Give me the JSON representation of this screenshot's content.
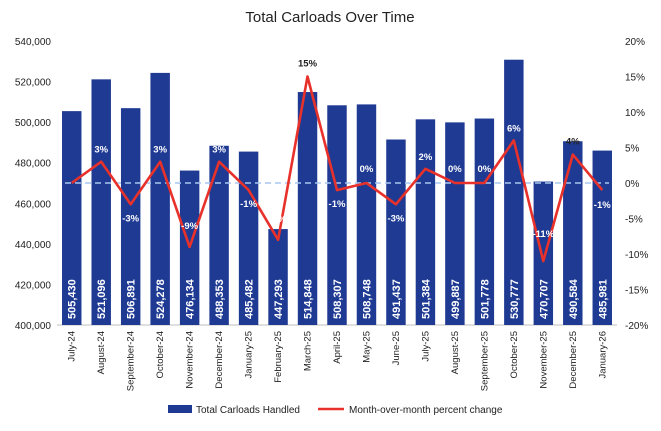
{
  "chart_data": {
    "type": "bar",
    "title": "Total Carloads Over Time",
    "categories": [
      "July-24",
      "August-24",
      "September-24",
      "October-24",
      "November-24",
      "December-24",
      "January-25",
      "February-25",
      "March-25",
      "April-25",
      "May-25",
      "June-25",
      "July-25",
      "August-25",
      "September-25",
      "October-25",
      "November-25",
      "December-25",
      "January-26"
    ],
    "series": [
      {
        "name": "Total Carloads Handled",
        "type": "bar",
        "axis": "left",
        "color": "#1f3a93",
        "values": [
          505430,
          521096,
          506891,
          524278,
          476134,
          488353,
          485482,
          447293,
          514848,
          508307,
          508748,
          491437,
          501384,
          499887,
          501778,
          530777,
          470707,
          490584,
          485981
        ],
        "labels": [
          "505,430",
          "521,096",
          "506,891",
          "524,278",
          "476,134",
          "488,353",
          "485,482",
          "447,293",
          "514,848",
          "508,307",
          "508,748",
          "491,437",
          "501,384",
          "499,887",
          "501,778",
          "530,777",
          "470,707",
          "490,584",
          "485,981"
        ]
      },
      {
        "name": "Month-over-month percent change",
        "type": "line",
        "axis": "right",
        "color": "#e8312a",
        "values": [
          0,
          3,
          -3,
          3,
          -9,
          3,
          -1,
          -8,
          15,
          -1,
          0,
          -3,
          2,
          0,
          0,
          6,
          -11,
          4,
          -1
        ],
        "labels": [
          "",
          "3%",
          "-3%",
          "3%",
          "-9%",
          "3%",
          "-1%",
          "-8%",
          "15%",
          "-1%",
          "0%",
          "-3%",
          "2%",
          "0%",
          "0%",
          "6%",
          "-11%",
          "4%",
          "-1%"
        ]
      }
    ],
    "y_left": {
      "min": 400000,
      "max": 540000,
      "step": 20000,
      "tick_labels": [
        "400,000",
        "420,000",
        "440,000",
        "460,000",
        "480,000",
        "500,000",
        "520,000",
        "540,000"
      ]
    },
    "y_right": {
      "min": -20,
      "max": 20,
      "step": 5,
      "tick_labels": [
        "-20%",
        "-15%",
        "-10%",
        "-5%",
        "0%",
        "5%",
        "10%",
        "15%",
        "20%"
      ]
    },
    "zero_line_color": "#a9c6f0",
    "grid": false,
    "legend_position": "bottom"
  }
}
